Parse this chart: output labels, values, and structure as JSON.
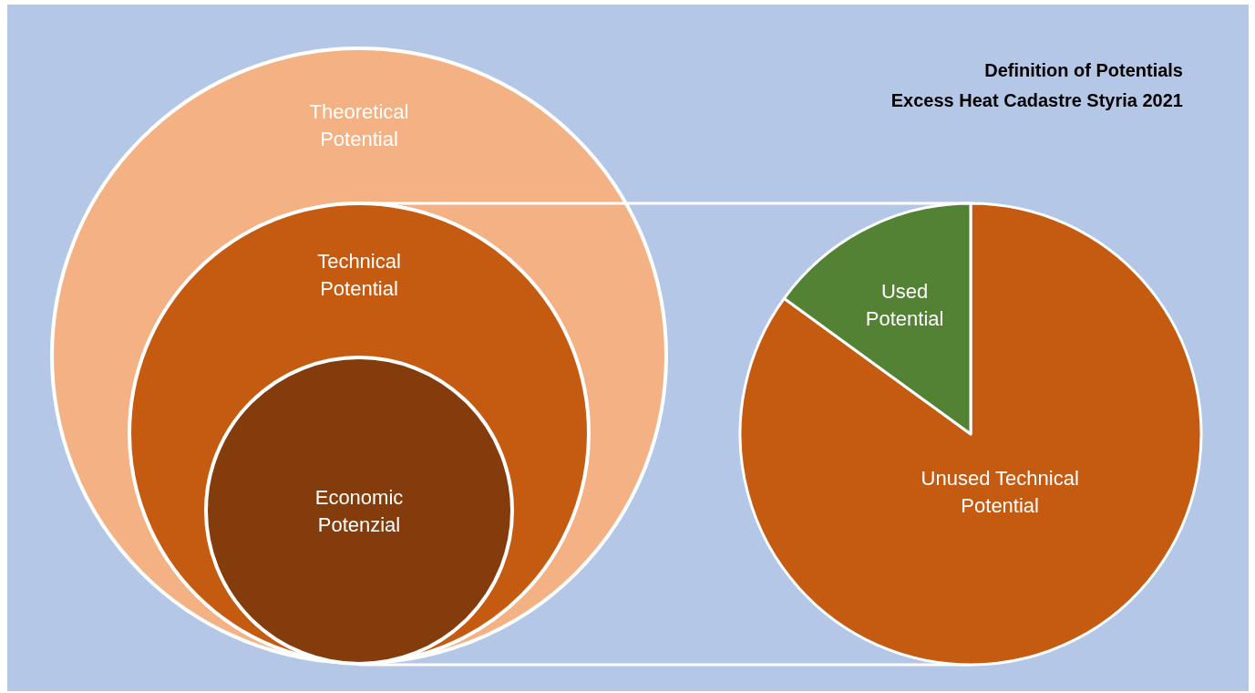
{
  "chart_data": [
    {
      "type": "other",
      "annotations": [
        "Theoretical Potential",
        "Technical Potential",
        "Economic Potenzial"
      ]
    },
    {
      "type": "pie",
      "title": "Definition of Potentials",
      "subtitle": "Excess Heat Cadastre Styria 2021",
      "categories": [
        "Unused Technical Potential",
        "Used Potential"
      ],
      "values": [
        85,
        15
      ],
      "colors": [
        "#c55a11",
        "#548235"
      ]
    }
  ]
}
